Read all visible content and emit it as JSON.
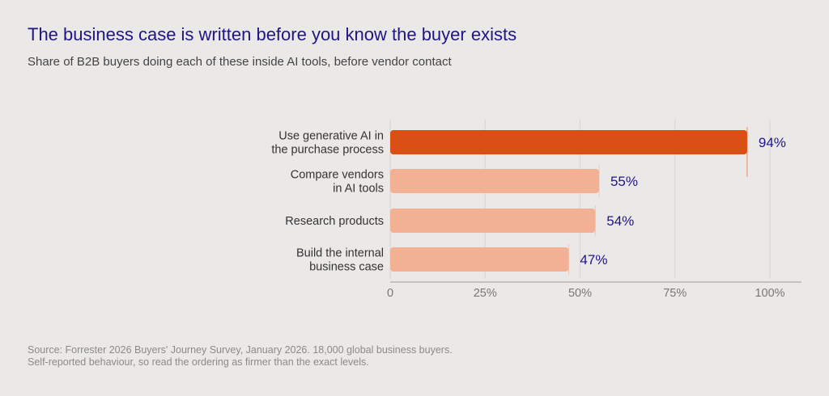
{
  "title": "The business case is written before you know the buyer exists",
  "subtitle": "Share of B2B buyers doing each of these inside AI tools, before vendor contact",
  "source": {
    "line1": "Source: Forrester 2026 Buyers' Journey Survey, January 2026. 18,000 global business buyers.",
    "line2": "Self-reported behaviour, so read the ordering as firmer than the exact levels."
  },
  "colors": {
    "highlight": "#d94f14",
    "muted": "#f2b094",
    "label_value": "#1f1585",
    "category_text": "#333333",
    "axis_text": "#777777",
    "grid": "#d9d4d1",
    "background": "#ebe9e7"
  },
  "chart_data": {
    "type": "bar",
    "orientation": "horizontal",
    "categories": [
      [
        "Use generative AI in",
        "the purchase process"
      ],
      [
        "Compare vendors",
        "in AI tools"
      ],
      [
        "Research products"
      ],
      [
        "Build the internal",
        "business case"
      ]
    ],
    "values": [
      94,
      55,
      54,
      47
    ],
    "value_labels": [
      "94%",
      "55%",
      "54%",
      "47%"
    ],
    "highlighted_index": 0,
    "xlim": [
      0,
      100
    ],
    "xticks": [
      0,
      25,
      50,
      75,
      100
    ],
    "xtick_labels": [
      "0",
      "25%",
      "50%",
      "75%",
      "100%"
    ],
    "grid": "vertical",
    "legend": "none"
  }
}
